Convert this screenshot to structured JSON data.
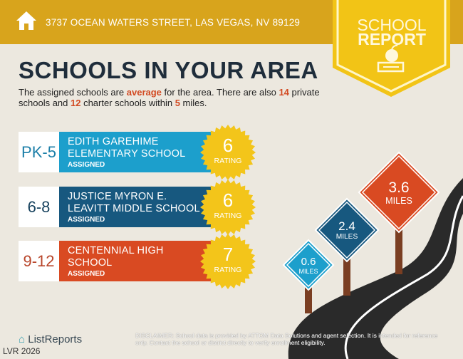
{
  "header": {
    "address": "3737 OCEAN WATERS STREET, LAS VEGAS, NV 89129",
    "icon": "home-icon"
  },
  "badge": {
    "line1": "SCHOOL",
    "line2": "REPORT",
    "icon": "apple-books-icon"
  },
  "title": "SCHOOLS IN YOUR AREA",
  "description": {
    "p1": "The assigned schools are ",
    "quality": "average",
    "p2": " for the area. There are also ",
    "private_count": "14",
    "p3": " private schools and ",
    "charter_count": "12",
    "p4": " charter schools within ",
    "miles": "5",
    "p5": " miles."
  },
  "schools": [
    {
      "grade": "PK-5",
      "name": "EDITH GAREHIME ELEMENTARY SCHOOL",
      "status": "ASSIGNED",
      "rating": "6",
      "rating_label": "RATING",
      "color": "#1c9fcc",
      "grade_color": "#1c7fa8"
    },
    {
      "grade": "6-8",
      "name": "JUSTICE MYRON E. LEAVITT MIDDLE SCHOOL",
      "status": "ASSIGNED",
      "rating": "6",
      "rating_label": "RATING",
      "color": "#17587f",
      "grade_color": "#17425e"
    },
    {
      "grade": "9-12",
      "name": "CENTENNIAL HIGH SCHOOL",
      "status": "ASSIGNED",
      "rating": "7",
      "rating_label": "RATING",
      "color": "#d94a22",
      "grade_color": "#b8452a"
    }
  ],
  "distances": [
    {
      "value": "0.6",
      "unit": "MILES",
      "color": "#1c9fcc"
    },
    {
      "value": "2.4",
      "unit": "MILES",
      "color": "#17587f"
    },
    {
      "value": "3.6",
      "unit": "MILES",
      "color": "#d94a22"
    }
  ],
  "footer": {
    "brand": "ListReports",
    "watermark": "LVR 2026",
    "disclaimer_label": "DISCLAIMER:",
    "disclaimer": " School data is provided by ATTOM Data Solutions and agent selection. It is intended for reference only. Contact the school or district directly to verify enrollment eligibility."
  },
  "colors": {
    "header": "#d8a41c",
    "badge": "#f2c416",
    "seal": "#f3c51a",
    "background": "#ece8df"
  }
}
